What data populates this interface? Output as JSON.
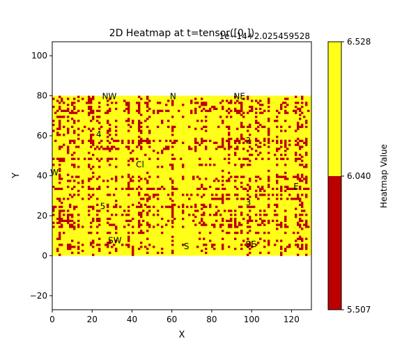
{
  "chart_data": {
    "type": "heatmap",
    "title": "2D Heatmap at t=tensor([0.])",
    "offset_text": "1e−14+2.025459528",
    "xlabel": "X",
    "ylabel": "Y",
    "xlim": [
      0,
      130
    ],
    "ylim": [
      -27,
      107
    ],
    "x_ticks": [
      "0",
      "20",
      "40",
      "60",
      "80",
      "100",
      "120"
    ],
    "x_tick_values": [
      0,
      20,
      40,
      60,
      80,
      100,
      120
    ],
    "y_ticks": [
      "−20",
      "0",
      "20",
      "40",
      "60",
      "80",
      "100"
    ],
    "y_tick_values": [
      -20,
      0,
      20,
      40,
      60,
      80,
      100
    ],
    "data_extent": {
      "x": [
        0,
        130
      ],
      "y": [
        0,
        80
      ]
    },
    "value_levels": [
      5.507,
      6.04,
      6.528
    ],
    "colors": {
      "low": "#bb0000",
      "high": "#ffff1a"
    },
    "high_fraction": 0.72,
    "annotations": [
      {
        "text": "NW",
        "x": 25,
        "y": 80
      },
      {
        "text": "N",
        "x": 59,
        "y": 80
      },
      {
        "text": "NE",
        "x": 91,
        "y": 80
      },
      {
        "text": "4",
        "x": 22,
        "y": 61
      },
      {
        "text": "2",
        "x": 97,
        "y": 58
      },
      {
        "text": "Cl",
        "x": 42,
        "y": 46
      },
      {
        "text": "W",
        "x": -1,
        "y": 42
      },
      {
        "text": "E",
        "x": 121,
        "y": 35
      },
      {
        "text": "5",
        "x": 24,
        "y": 25
      },
      {
        "text": "3",
        "x": 97,
        "y": 27
      },
      {
        "text": "SW",
        "x": 28,
        "y": 8
      },
      {
        "text": "S",
        "x": 66,
        "y": 5
      },
      {
        "text": "SE",
        "x": 97,
        "y": 6
      }
    ],
    "colorbar": {
      "label": "Heatmap Value",
      "ticks": [
        "5.507",
        "6.040",
        "6.528"
      ],
      "tick_values": [
        5.507,
        6.04,
        6.528
      ]
    }
  }
}
